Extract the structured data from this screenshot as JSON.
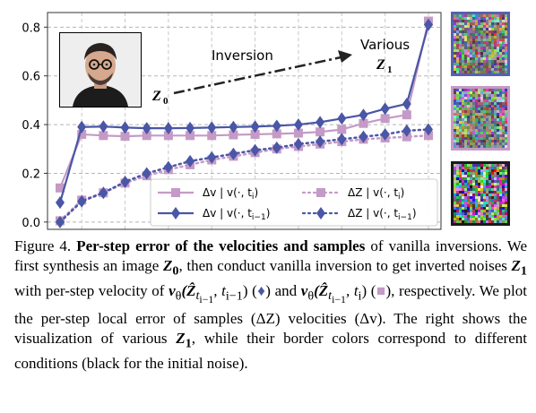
{
  "chart_data": {
    "type": "line",
    "x": [
      0,
      1,
      2,
      3,
      4,
      5,
      6,
      7,
      8,
      9,
      10,
      11,
      12,
      13,
      14,
      15,
      16,
      17
    ],
    "ylim": [
      -0.03,
      0.86
    ],
    "yticks": [
      "0.0",
      "0.2",
      "0.4",
      "0.6",
      "0.8"
    ],
    "ytick_values": [
      0.0,
      0.2,
      0.4,
      0.6,
      0.8
    ],
    "grid": true,
    "legend_position": "bottom-right",
    "series": [
      {
        "name": "Δv | v(·, t_i)",
        "color": "#c49ac6",
        "marker": "square",
        "dash": "solid",
        "values": [
          0.14,
          0.36,
          0.355,
          0.352,
          0.355,
          0.355,
          0.355,
          0.355,
          0.358,
          0.36,
          0.362,
          0.365,
          0.37,
          0.38,
          0.405,
          0.425,
          0.44,
          0.825
        ]
      },
      {
        "name": "Δv | v(·, t_{i−1})",
        "color": "#4a56a6",
        "marker": "diamond",
        "dash": "solid",
        "values": [
          0.08,
          0.39,
          0.392,
          0.388,
          0.385,
          0.385,
          0.386,
          0.388,
          0.39,
          0.392,
          0.395,
          0.4,
          0.41,
          0.425,
          0.44,
          0.465,
          0.485,
          0.81
        ]
      },
      {
        "name": "ΔZ | v(·, t_i)",
        "color": "#c49ac6",
        "marker": "square",
        "dash": "dotted",
        "values": [
          0.005,
          0.09,
          0.12,
          0.16,
          0.19,
          0.215,
          0.235,
          0.255,
          0.27,
          0.285,
          0.3,
          0.31,
          0.32,
          0.33,
          0.34,
          0.345,
          0.35,
          0.355
        ]
      },
      {
        "name": "ΔZ | v(·, t_{i−1})",
        "color": "#4a56a6",
        "marker": "diamond",
        "dash": "dotted",
        "values": [
          0.0,
          0.085,
          0.12,
          0.165,
          0.2,
          0.225,
          0.25,
          0.265,
          0.28,
          0.295,
          0.305,
          0.32,
          0.33,
          0.34,
          0.35,
          0.36,
          0.375,
          0.38
        ]
      }
    ],
    "annotations": {
      "inversion": "Inversion",
      "various": "Various",
      "z0_symbol": "Z",
      "z0_sub": "0",
      "z1_symbol": "Z",
      "z1_sub": "1"
    },
    "thumbnail_borders": [
      "#5661ad",
      "#c49ac6",
      "#1a1a1a"
    ]
  },
  "caption": {
    "fig_label": "Figure 4.",
    "bold_title": "Per-step error of the velocities and samples",
    "t1": " of vanilla inversions. We first synthesis an image ",
    "z0": "Z",
    "z0_sub": "0",
    "t2": ", then conduct vanilla inversion to get inverted noises ",
    "z1": "Z",
    "z1_sub": "1",
    "t3": " with per-step velocity of ",
    "v1": "v",
    "theta1": "θ",
    "args1": "(Ẑ",
    "args1_sub": "t",
    "args1_subsub": "i−1",
    "args1_end": ", t",
    "args1_end_sub": "i−1",
    "args1_close": ") (",
    "diamond": "♦",
    "t4": ") and ",
    "v2": "v",
    "theta2": "θ",
    "args2": "(Ẑ",
    "args2_sub": "t",
    "args2_subsub": "i−1",
    "args2_end": ", t",
    "args2_end_sub": "i",
    "args2_close": ") (",
    "square": "■",
    "t5": "), respectively. We plot the per-step local error of samples (ΔZ) velocities (Δv). The right shows the visualization of various ",
    "z1b": "Z",
    "z1b_sub": "1",
    "t6": ", while their border colors correspond to different conditions (black for the initial noise)."
  }
}
